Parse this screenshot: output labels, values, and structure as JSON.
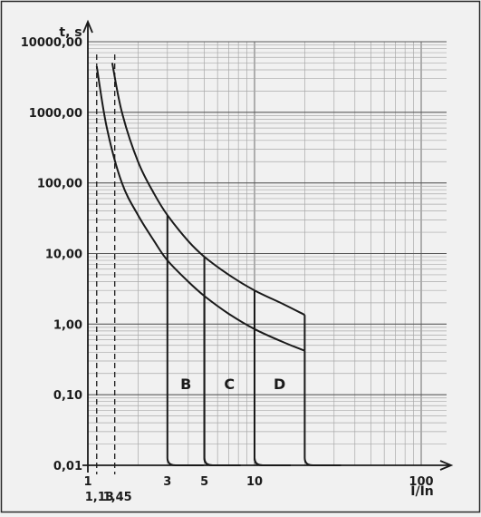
{
  "chart_data": {
    "type": "line",
    "x_scale": "log",
    "y_scale": "log",
    "xlim": [
      1,
      100
    ],
    "ylim": [
      0.01,
      10000
    ],
    "xlabel": "I/In",
    "ylabel": "t, s",
    "grid": true,
    "y_tick_labels": [
      {
        "value": 10000,
        "label": "10000,00"
      },
      {
        "value": 1000,
        "label": "1000,00"
      },
      {
        "value": 100,
        "label": "100,00"
      },
      {
        "value": 10,
        "label": "10,00"
      },
      {
        "value": 1,
        "label": "1,00"
      },
      {
        "value": 0.1,
        "label": "0,10"
      },
      {
        "value": 0.01,
        "label": "0,01"
      }
    ],
    "x_tick_labels": [
      {
        "value": 1,
        "label": "1"
      },
      {
        "value": 3,
        "label": "3"
      },
      {
        "value": 5,
        "label": "5"
      },
      {
        "value": 10,
        "label": "10"
      },
      {
        "value": 100,
        "label": "100"
      }
    ],
    "reference_lines": [
      {
        "x": 1.13,
        "label": "1,13",
        "style": "dashed"
      },
      {
        "x": 1.45,
        "label": "1,45",
        "style": "dashed"
      }
    ],
    "thermal_curves": [
      {
        "name": "lower",
        "x": [
          1.13,
          1.3,
          1.6,
          2,
          2.5,
          3,
          4,
          5,
          7,
          10,
          15,
          20
        ],
        "y": [
          4500,
          600,
          100,
          35,
          15,
          8,
          4,
          2.5,
          1.4,
          0.85,
          0.55,
          0.42
        ]
      },
      {
        "name": "upper",
        "x": [
          1.4,
          1.6,
          2,
          2.5,
          3,
          4,
          5,
          7,
          10,
          15,
          20
        ],
        "y": [
          5000,
          1000,
          200,
          70,
          35,
          15,
          9,
          5,
          3,
          1.9,
          1.35
        ]
      }
    ],
    "magnetic_trip": [
      {
        "label": "B",
        "x_min": 3,
        "x_max": 5,
        "t_lower_at_min": 8,
        "t_upper_at_min": 35
      },
      {
        "label": "C",
        "x_min": 5,
        "x_max": 10,
        "t_lower_at_min": 2.5,
        "t_upper_at_min": 9
      },
      {
        "label": "D",
        "x_min": 10,
        "x_max": 20,
        "t_lower_at_min": 0.85,
        "t_upper_at_min": 3
      }
    ],
    "trip_floor_t": 0.01,
    "arrow_x_end": 130
  }
}
